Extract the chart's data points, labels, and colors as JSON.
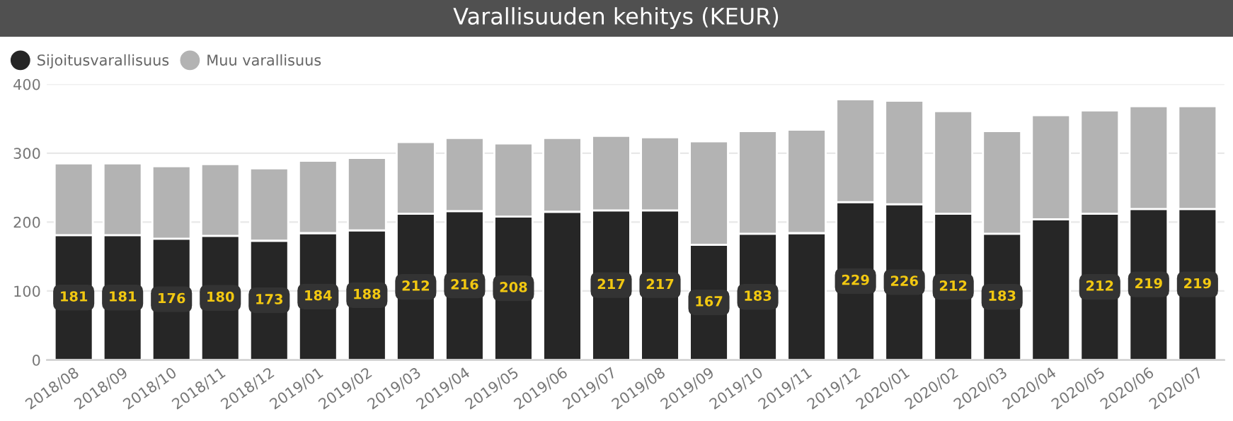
{
  "chart_data": {
    "type": "bar",
    "title": "Varallisuuden kehitys (KEUR)",
    "stacked": true,
    "categories": [
      "2018/08",
      "2018/09",
      "2018/10",
      "2018/11",
      "2018/12",
      "2019/01",
      "2019/02",
      "2019/03",
      "2019/04",
      "2019/05",
      "2019/06",
      "2019/07",
      "2019/08",
      "2019/09",
      "2019/10",
      "2019/11",
      "2019/12",
      "2020/01",
      "2020/02",
      "2020/03",
      "2020/04",
      "2020/05",
      "2020/06",
      "2020/07"
    ],
    "series": [
      {
        "name": "Sijoitusvarallisuus",
        "color": "#262626",
        "values": [
          181,
          181,
          176,
          180,
          173,
          184,
          188,
          212,
          216,
          208,
          215,
          217,
          217,
          167,
          183,
          184,
          229,
          226,
          212,
          183,
          204,
          212,
          219,
          219
        ],
        "value_labels": [
          "181",
          "181",
          "176",
          "180",
          "173",
          "184",
          "188",
          "212",
          "216",
          "208",
          null,
          "217",
          "217",
          "167",
          "183",
          null,
          "229",
          "226",
          "212",
          "183",
          null,
          "212",
          "219",
          "219"
        ]
      },
      {
        "name": "Muu varallisuus",
        "color": "#b3b3b3",
        "values": [
          104,
          104,
          105,
          104,
          105,
          105,
          105,
          104,
          106,
          106,
          107,
          108,
          106,
          150,
          149,
          150,
          149,
          150,
          149,
          149,
          151,
          150,
          149,
          149
        ]
      }
    ],
    "ylim": [
      0,
      400
    ],
    "yticks": [
      0,
      100,
      200,
      300,
      400
    ],
    "grid": "y",
    "legend": "top left"
  }
}
